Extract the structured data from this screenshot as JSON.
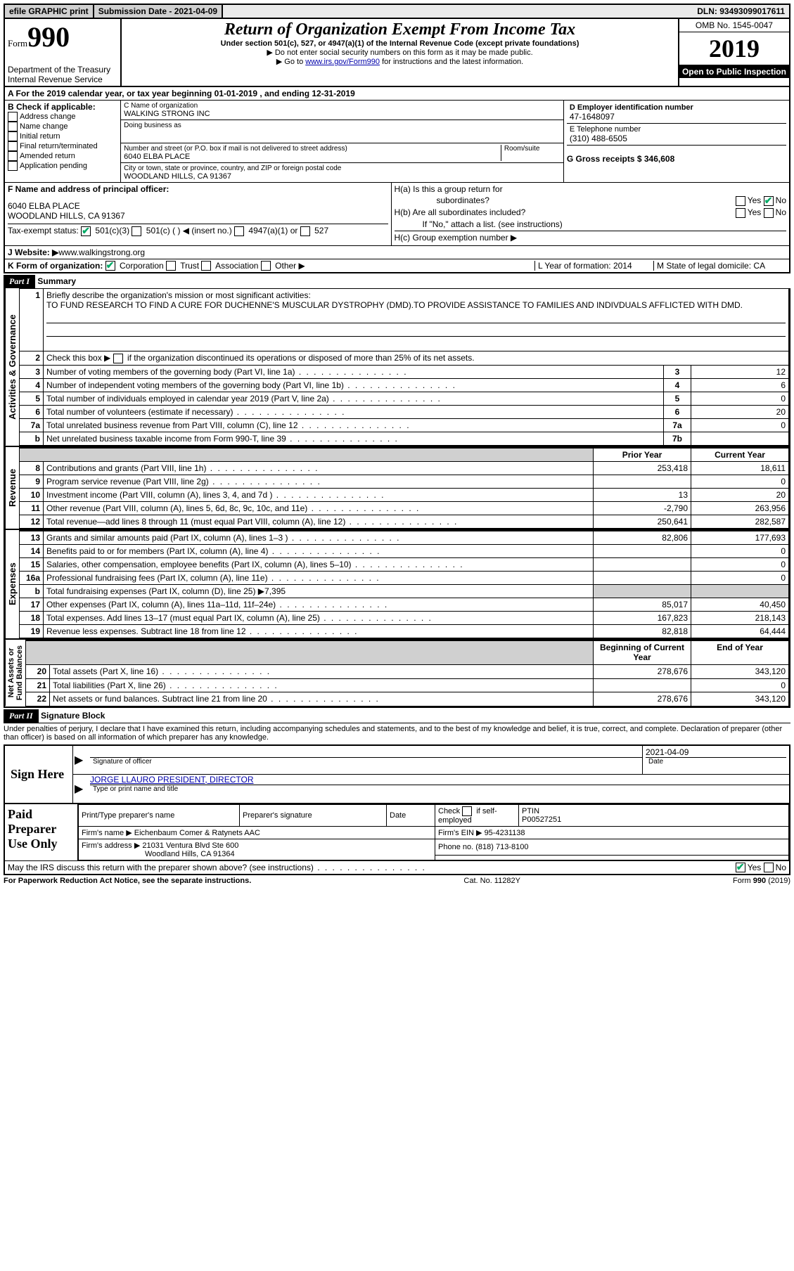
{
  "top": {
    "efile": "efile GRAPHIC print",
    "submission_label": "Submission Date - 2021-04-09",
    "dln": "DLN: 93493099017611"
  },
  "header": {
    "form_label": "Form",
    "form_number": "990",
    "dept": "Department of the Treasury\nInternal Revenue Service",
    "title": "Return of Organization Exempt From Income Tax",
    "sub1": "Under section 501(c), 527, or 4947(a)(1) of the Internal Revenue Code (except private foundations)",
    "sub2": "▶ Do not enter social security numbers on this form as it may be made public.",
    "sub3_pre": "▶ Go to ",
    "sub3_link": "www.irs.gov/Form990",
    "sub3_post": " for instructions and the latest information.",
    "omb": "OMB No. 1545-0047",
    "year": "2019",
    "public": "Open to Public Inspection"
  },
  "lineA": "A For the 2019 calendar year, or tax year beginning 01-01-2019   , and ending 12-31-2019",
  "boxB": {
    "label": "B Check if applicable:",
    "opts": [
      "Address change",
      "Name change",
      "Initial return",
      "Final return/terminated",
      "Amended return",
      "Application pending"
    ]
  },
  "boxC": {
    "name_label": "C Name of organization",
    "name": "WALKING STRONG INC",
    "dba": "Doing business as",
    "street_label": "Number and street (or P.O. box if mail is not delivered to street address)",
    "room_label": "Room/suite",
    "street": "6040 ELBA PLACE",
    "city_label": "City or town, state or province, country, and ZIP or foreign postal code",
    "city": "WOODLAND HILLS, CA  91367"
  },
  "boxD": {
    "label": "D Employer identification number",
    "ein": "47-1648097"
  },
  "boxE": {
    "label": "E Telephone number",
    "phone": "(310) 488-6505"
  },
  "boxG": {
    "label": "G Gross receipts $ 346,608"
  },
  "boxF": {
    "label": "F  Name and address of principal officer:",
    "addr1": "6040 ELBA PLACE",
    "addr2": "WOODLAND HILLS, CA  91367"
  },
  "boxH": {
    "a": "H(a)  Is this a group return for",
    "a2": "subordinates?",
    "b": "H(b)  Are all subordinates included?",
    "b2": "If \"No,\" attach a list. (see instructions)",
    "c": "H(c)  Group exemption number ▶",
    "yes": "Yes",
    "no": "No"
  },
  "boxI": {
    "label": "Tax-exempt status:",
    "o1": "501(c)(3)",
    "o2": "501(c) (   ) ◀ (insert no.)",
    "o3": "4947(a)(1) or",
    "o4": "527"
  },
  "boxJ": {
    "label": "J  Website: ▶",
    "url": " www.walkingstrong.org"
  },
  "boxK": {
    "label": "K Form of organization:",
    "o1": "Corporation",
    "o2": "Trust",
    "o3": "Association",
    "o4": "Other ▶"
  },
  "boxL": {
    "label": "L Year of formation: 2014"
  },
  "boxM": {
    "label": "M State of legal domicile: CA"
  },
  "part1": {
    "header": "Part I",
    "title": "Summary",
    "l1": "Briefly describe the organization's mission or most significant activities:",
    "mission": "TO FUND RESEARCH TO FIND A CURE FOR DUCHENNE'S MUSCULAR DYSTROPHY (DMD).TO PROVIDE ASSISTANCE TO FAMILIES AND INDIVDUALS AFFLICTED WITH DMD.",
    "l2": "Check this box ▶",
    "l2b": "if the organization discontinued its operations or disposed of more than 25% of its net assets.",
    "lines": {
      "l3": {
        "n": "3",
        "d": "Number of voting members of the governing body (Part VI, line 1a)",
        "b": "3",
        "v": "12"
      },
      "l4": {
        "n": "4",
        "d": "Number of independent voting members of the governing body (Part VI, line 1b)",
        "b": "4",
        "v": "6"
      },
      "l5": {
        "n": "5",
        "d": "Total number of individuals employed in calendar year 2019 (Part V, line 2a)",
        "b": "5",
        "v": "0"
      },
      "l6": {
        "n": "6",
        "d": "Total number of volunteers (estimate if necessary)",
        "b": "6",
        "v": "20"
      },
      "l7a": {
        "n": "7a",
        "d": "Total unrelated business revenue from Part VIII, column (C), line 12",
        "b": "7a",
        "v": "0"
      },
      "l7b": {
        "n": "b",
        "d": "Net unrelated business taxable income from Form 990-T, line 39",
        "b": "7b",
        "v": ""
      }
    },
    "col_prior": "Prior Year",
    "col_current": "Current Year",
    "revenue": [
      {
        "n": "8",
        "d": "Contributions and grants (Part VIII, line 1h)",
        "p": "253,418",
        "c": "18,611"
      },
      {
        "n": "9",
        "d": "Program service revenue (Part VIII, line 2g)",
        "p": "",
        "c": "0"
      },
      {
        "n": "10",
        "d": "Investment income (Part VIII, column (A), lines 3, 4, and 7d )",
        "p": "13",
        "c": "20"
      },
      {
        "n": "11",
        "d": "Other revenue (Part VIII, column (A), lines 5, 6d, 8c, 9c, 10c, and 11e)",
        "p": "-2,790",
        "c": "263,956"
      },
      {
        "n": "12",
        "d": "Total revenue—add lines 8 through 11 (must equal Part VIII, column (A), line 12)",
        "p": "250,641",
        "c": "282,587"
      }
    ],
    "expenses": [
      {
        "n": "13",
        "d": "Grants and similar amounts paid (Part IX, column (A), lines 1–3 )",
        "p": "82,806",
        "c": "177,693"
      },
      {
        "n": "14",
        "d": "Benefits paid to or for members (Part IX, column (A), line 4)",
        "p": "",
        "c": "0"
      },
      {
        "n": "15",
        "d": "Salaries, other compensation, employee benefits (Part IX, column (A), lines 5–10)",
        "p": "",
        "c": "0"
      },
      {
        "n": "16a",
        "d": "Professional fundraising fees (Part IX, column (A), line 11e)",
        "p": "",
        "c": "0"
      }
    ],
    "l16b": {
      "n": "b",
      "d": "Total fundraising expenses (Part IX, column (D), line 25) ▶7,395"
    },
    "expenses2": [
      {
        "n": "17",
        "d": "Other expenses (Part IX, column (A), lines 11a–11d, 11f–24e)",
        "p": "85,017",
        "c": "40,450"
      },
      {
        "n": "18",
        "d": "Total expenses. Add lines 13–17 (must equal Part IX, column (A), line 25)",
        "p": "167,823",
        "c": "218,143"
      },
      {
        "n": "19",
        "d": "Revenue less expenses. Subtract line 18 from line 12",
        "p": "82,818",
        "c": "64,444"
      }
    ],
    "col_begin": "Beginning of Current Year",
    "col_end": "End of Year",
    "netassets": [
      {
        "n": "20",
        "d": "Total assets (Part X, line 16)",
        "p": "278,676",
        "c": "343,120"
      },
      {
        "n": "21",
        "d": "Total liabilities (Part X, line 26)",
        "p": "",
        "c": "0"
      },
      {
        "n": "22",
        "d": "Net assets or fund balances. Subtract line 21 from line 20",
        "p": "278,676",
        "c": "343,120"
      }
    ],
    "side_ag": "Activities & Governance",
    "side_rev": "Revenue",
    "side_exp": "Expenses",
    "side_na": "Net Assets or\nFund Balances"
  },
  "part2": {
    "header": "Part II",
    "title": "Signature Block",
    "penalty": "Under penalties of perjury, I declare that I have examined this return, including accompanying schedules and statements, and to the best of my knowledge and belief, it is true, correct, and complete. Declaration of preparer (other than officer) is based on all information of which preparer has any knowledge.",
    "sign_here": "Sign Here",
    "sig_label": "Signature of officer",
    "date_label": "Date",
    "date_val": "2021-04-09",
    "name_title": "JORGE LLAURO  PRESIDENT, DIRECTOR",
    "name_title_label": "Type or print name and title",
    "paid_label": "Paid Preparer Use Only",
    "p_name_l": "Print/Type preparer's name",
    "p_sig_l": "Preparer's signature",
    "p_date_l": "Date",
    "p_check": "Check",
    "p_self": "if self-employed",
    "ptin_l": "PTIN",
    "ptin": "P00527251",
    "firm_name_l": "Firm's name    ▶",
    "firm_name": "Eichenbaum Comer & Ratynets AAC",
    "firm_ein_l": "Firm's EIN ▶",
    "firm_ein": "95-4231138",
    "firm_addr_l": "Firm's address ▶",
    "firm_addr1": "21031 Ventura Blvd Ste 600",
    "firm_addr2": "Woodland Hills, CA  91364",
    "firm_phone_l": "Phone no.",
    "firm_phone": "(818) 713-8100",
    "discuss": "May the IRS discuss this return with the preparer shown above? (see instructions)",
    "yes": "Yes",
    "no": "No"
  },
  "footer": {
    "left": "For Paperwork Reduction Act Notice, see the separate instructions.",
    "mid": "Cat. No. 11282Y",
    "right": "Form 990 (2019)"
  }
}
